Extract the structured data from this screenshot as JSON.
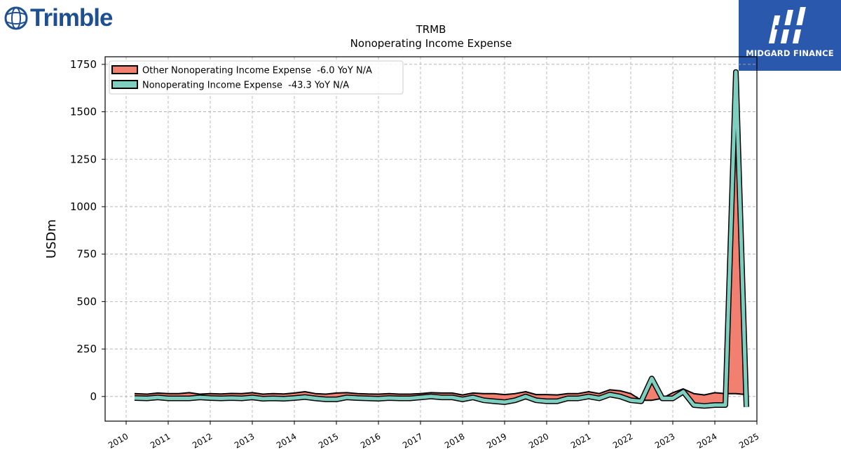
{
  "logos": {
    "left_wordmark": "Trimble",
    "left_icon": "trimble-globe-icon",
    "right_text": "MIDGARD FINANCE",
    "right_icon": "midgard-mark-icon",
    "right_bg": "#2a58ad"
  },
  "chart_data": {
    "type": "area",
    "title": "TRMB",
    "subtitle": "Nonoperating Income Expense",
    "ylabel": "USDm",
    "xlabel": "",
    "xlim": [
      2009.5,
      2025.0
    ],
    "ylim": [
      -130,
      1790
    ],
    "xticks": [
      2010,
      2011,
      2012,
      2013,
      2014,
      2015,
      2016,
      2017,
      2018,
      2019,
      2020,
      2021,
      2022,
      2023,
      2024,
      2025
    ],
    "yticks": [
      0,
      250,
      500,
      750,
      1000,
      1250,
      1500,
      1750
    ],
    "grid": true,
    "legend_position": "top-left",
    "x": [
      2010.2,
      2010.5,
      2010.75,
      2011.0,
      2011.25,
      2011.5,
      2011.75,
      2012.0,
      2012.25,
      2012.5,
      2012.75,
      2013.0,
      2013.25,
      2013.5,
      2013.75,
      2014.0,
      2014.25,
      2014.5,
      2014.75,
      2015.0,
      2015.25,
      2015.5,
      2015.75,
      2016.0,
      2016.25,
      2016.5,
      2016.75,
      2017.0,
      2017.25,
      2017.5,
      2017.75,
      2018.0,
      2018.25,
      2018.5,
      2018.75,
      2019.0,
      2019.25,
      2019.5,
      2019.75,
      2020.0,
      2020.25,
      2020.5,
      2020.75,
      2021.0,
      2021.25,
      2021.5,
      2021.75,
      2022.0,
      2022.25,
      2022.5,
      2022.75,
      2023.0,
      2023.25,
      2023.5,
      2023.75,
      2024.0,
      2024.25,
      2024.5,
      2024.75
    ],
    "series": [
      {
        "name": "Other Nonoperating Income Expense  -6.0 YoY N/A",
        "color": "#f28070",
        "values": [
          15,
          12,
          18,
          15,
          15,
          20,
          12,
          15,
          13,
          16,
          15,
          20,
          12,
          15,
          13,
          18,
          25,
          15,
          12,
          18,
          20,
          15,
          13,
          12,
          15,
          12,
          12,
          15,
          20,
          18,
          18,
          8,
          18,
          15,
          15,
          10,
          15,
          25,
          10,
          10,
          8,
          15,
          15,
          25,
          15,
          35,
          30,
          15,
          -20,
          -20,
          -10,
          20,
          40,
          15,
          8,
          20,
          15,
          15,
          10
        ]
      },
      {
        "name": "Nonoperating Income Expense  -43.3 YoY N/A",
        "color": "#7ecfbf",
        "values": [
          -8,
          -10,
          -5,
          -10,
          -10,
          -10,
          -5,
          -8,
          -10,
          -8,
          -10,
          -5,
          -12,
          -10,
          -12,
          -8,
          -3,
          -10,
          -15,
          -15,
          -5,
          -8,
          -10,
          -12,
          -8,
          -10,
          -10,
          -5,
          0,
          -5,
          -5,
          -15,
          -5,
          -20,
          -25,
          -30,
          -20,
          0,
          -20,
          -25,
          -25,
          -10,
          -10,
          0,
          -10,
          10,
          0,
          -20,
          -25,
          95,
          -10,
          -10,
          25,
          -45,
          -50,
          -45,
          -45,
          1710,
          -55
        ]
      }
    ]
  }
}
